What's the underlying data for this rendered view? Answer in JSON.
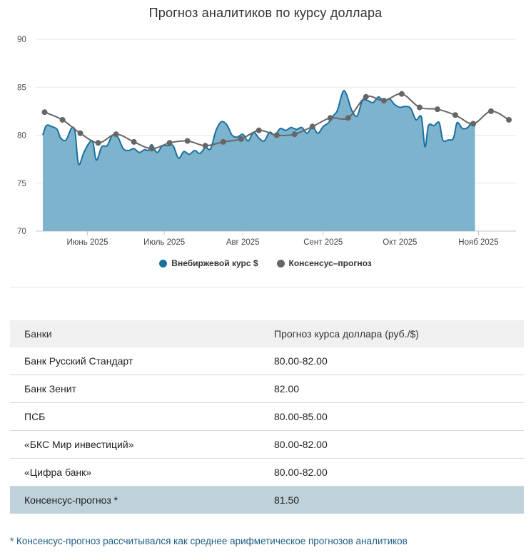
{
  "chart_data": {
    "type": "area",
    "title": "Прогноз аналитиков по курсу доллара",
    "ylim": [
      70,
      90
    ],
    "yticks": [
      70,
      75,
      80,
      85,
      90
    ],
    "xlim": [
      0,
      26.5
    ],
    "xticks": [
      {
        "x": 2.5,
        "label": "Июнь 2025"
      },
      {
        "x": 6.8,
        "label": "Июль 2025"
      },
      {
        "x": 11.2,
        "label": "Авг 2025"
      },
      {
        "x": 15.7,
        "label": "Сент 2025"
      },
      {
        "x": 20.0,
        "label": "Окт 2025"
      },
      {
        "x": 24.4,
        "label": "Нояб 2025"
      }
    ],
    "grid": true,
    "legend_position": "bottom",
    "series": [
      {
        "name": "Внебиржевой курс $",
        "type": "area",
        "color": "#1a6fa0",
        "fill": "#7db3cc",
        "points": [
          [
            0,
            80.0
          ],
          [
            0.2,
            81.0
          ],
          [
            0.5,
            80.9
          ],
          [
            0.8,
            80.6
          ],
          [
            1.0,
            79.7
          ],
          [
            1.3,
            79.5
          ],
          [
            1.6,
            80.7
          ],
          [
            1.8,
            80.4
          ],
          [
            2.0,
            77.0
          ],
          [
            2.3,
            78.2
          ],
          [
            2.6,
            79.2
          ],
          [
            2.8,
            79.3
          ],
          [
            3.0,
            77.4
          ],
          [
            3.3,
            78.8
          ],
          [
            3.6,
            78.9
          ],
          [
            3.9,
            80.0
          ],
          [
            4.2,
            79.8
          ],
          [
            4.5,
            78.6
          ],
          [
            4.8,
            78.4
          ],
          [
            5.1,
            78.6
          ],
          [
            5.4,
            78.2
          ],
          [
            5.7,
            78.5
          ],
          [
            5.9,
            78.4
          ],
          [
            6.1,
            79.0
          ],
          [
            6.4,
            78.2
          ],
          [
            6.7,
            78.9
          ],
          [
            7.0,
            78.9
          ],
          [
            7.3,
            78.9
          ],
          [
            7.6,
            77.6
          ],
          [
            7.9,
            78.3
          ],
          [
            8.2,
            78.0
          ],
          [
            8.5,
            78.4
          ],
          [
            8.8,
            78.1
          ],
          [
            9.1,
            78.7
          ],
          [
            9.4,
            78.6
          ],
          [
            9.7,
            80.5
          ],
          [
            10.0,
            81.4
          ],
          [
            10.3,
            81.1
          ],
          [
            10.6,
            80.0
          ],
          [
            10.9,
            79.8
          ],
          [
            11.2,
            80.1
          ],
          [
            11.5,
            79.4
          ],
          [
            11.8,
            80.3
          ],
          [
            12.1,
            79.7
          ],
          [
            12.4,
            79.4
          ],
          [
            12.7,
            80.3
          ],
          [
            13.0,
            80.0
          ],
          [
            13.3,
            80.7
          ],
          [
            13.6,
            80.5
          ],
          [
            13.9,
            80.8
          ],
          [
            14.2,
            80.6
          ],
          [
            14.5,
            80.8
          ],
          [
            14.8,
            80.2
          ],
          [
            15.1,
            80.9
          ],
          [
            15.4,
            80.2
          ],
          [
            15.7,
            80.9
          ],
          [
            16.0,
            81.3
          ],
          [
            16.3,
            82.1
          ],
          [
            16.5,
            82.6
          ],
          [
            16.8,
            84.5
          ],
          [
            17.0,
            84.3
          ],
          [
            17.3,
            82.6
          ],
          [
            17.6,
            82.0
          ],
          [
            17.9,
            83.6
          ],
          [
            18.2,
            83.6
          ],
          [
            18.5,
            83.4
          ],
          [
            18.8,
            84.0
          ],
          [
            19.1,
            83.5
          ],
          [
            19.4,
            83.8
          ],
          [
            19.7,
            83.2
          ],
          [
            20.0,
            82.9
          ],
          [
            20.3,
            83.0
          ],
          [
            20.6,
            82.8
          ],
          [
            20.9,
            81.6
          ],
          [
            21.2,
            81.9
          ],
          [
            21.4,
            78.8
          ],
          [
            21.6,
            81.0
          ],
          [
            21.9,
            81.0
          ],
          [
            22.2,
            81.3
          ],
          [
            22.4,
            79.5
          ],
          [
            22.7,
            79.5
          ],
          [
            23.0,
            79.7
          ],
          [
            23.2,
            81.3
          ],
          [
            23.5,
            80.7
          ],
          [
            23.8,
            80.8
          ],
          [
            24.0,
            81.3
          ],
          [
            24.2,
            80.9
          ]
        ]
      },
      {
        "name": "Консенсус–прогноз",
        "type": "line",
        "color": "#666666",
        "points": [
          [
            0.1,
            82.4
          ],
          [
            1.1,
            81.6
          ],
          [
            2.1,
            80.2
          ],
          [
            3.1,
            79.2
          ],
          [
            4.1,
            80.1
          ],
          [
            5.1,
            79.3
          ],
          [
            6.1,
            78.6
          ],
          [
            7.1,
            79.2
          ],
          [
            8.1,
            79.4
          ],
          [
            9.1,
            78.9
          ],
          [
            10.1,
            79.3
          ],
          [
            11.1,
            79.6
          ],
          [
            12.1,
            80.5
          ],
          [
            13.1,
            80.0
          ],
          [
            14.1,
            80.1
          ],
          [
            15.1,
            80.9
          ],
          [
            16.1,
            81.8
          ],
          [
            17.1,
            81.8
          ],
          [
            18.1,
            84.0
          ],
          [
            19.1,
            83.6
          ],
          [
            20.1,
            84.3
          ],
          [
            21.1,
            82.9
          ],
          [
            22.1,
            82.7
          ],
          [
            23.1,
            82.1
          ],
          [
            24.1,
            81.2
          ],
          [
            25.1,
            82.5
          ],
          [
            26.1,
            81.6
          ]
        ]
      }
    ]
  },
  "table": {
    "headers": [
      "Банки",
      "Прогноз курса доллара (руб./$)"
    ],
    "rows": [
      [
        "Банк Русский Стандарт",
        "80.00-82.00"
      ],
      [
        "Банк Зенит",
        "82.00"
      ],
      [
        "ПСБ",
        "80.00-85.00"
      ],
      [
        "«БКС Мир инвестиций»",
        "80.00-82.00"
      ],
      [
        "«Цифра банк»",
        "80.00-82.00"
      ],
      [
        "Консенсус-прогноз *",
        "81.50"
      ]
    ]
  },
  "footnote": "* Консенсус-прогноз рассчитывался как среднее арифметическое прогнозов аналитиков"
}
